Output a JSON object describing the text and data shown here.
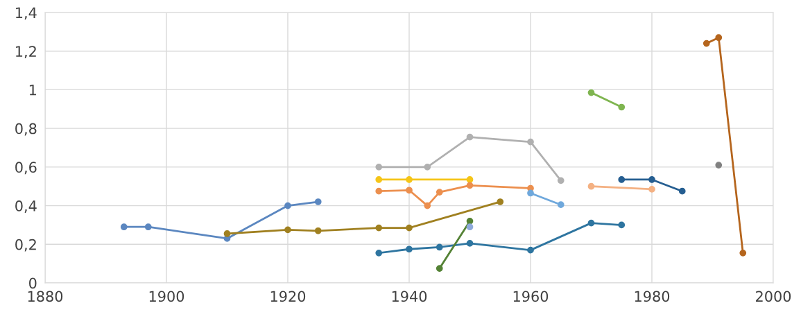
{
  "chart_data": {
    "type": "line",
    "marker": "circle",
    "line_style": "solid",
    "grid": true,
    "legend": false,
    "xlim": [
      1880,
      2000
    ],
    "xticks": [
      1880,
      1900,
      1920,
      1940,
      1960,
      1980,
      2000
    ],
    "ylim": [
      0,
      1.4
    ],
    "yticks": [
      {
        "value": 0,
        "label": "0"
      },
      {
        "value": 0.2,
        "label": "0,2"
      },
      {
        "value": 0.4,
        "label": "0,4"
      },
      {
        "value": 0.6,
        "label": "0,6"
      },
      {
        "value": 0.8,
        "label": "0,8"
      },
      {
        "value": 1,
        "label": "1"
      },
      {
        "value": 1.2,
        "label": "1,2"
      },
      {
        "value": 1.4,
        "label": "1,4"
      }
    ],
    "series": [
      {
        "color": "#5b87c0",
        "x": [
          1893,
          1897,
          1910,
          1920,
          1925
        ],
        "values": [
          0.29,
          0.29,
          0.23,
          0.4,
          0.42
        ]
      },
      {
        "color": "#a08020",
        "x": [
          1910,
          1920,
          1925,
          1935,
          1940,
          1955
        ],
        "values": [
          0.255,
          0.275,
          0.27,
          0.285,
          0.285,
          0.42
        ]
      },
      {
        "color": "#b0b0b0",
        "x": [
          1935,
          1943,
          1950,
          1960,
          1965
        ],
        "values": [
          0.6,
          0.6,
          0.755,
          0.73,
          0.53
        ]
      },
      {
        "color": "#f5c518",
        "x": [
          1935,
          1940,
          1950
        ],
        "values": [
          0.535,
          0.535,
          0.535
        ]
      },
      {
        "color": "#ec8f4e",
        "x": [
          1935,
          1940,
          1943,
          1945,
          1950,
          1960
        ],
        "values": [
          0.475,
          0.48,
          0.4,
          0.47,
          0.505,
          0.49
        ]
      },
      {
        "color": "#2e75a0",
        "x": [
          1935,
          1940,
          1945,
          1950,
          1960,
          1970,
          1975
        ],
        "values": [
          0.155,
          0.175,
          0.185,
          0.205,
          0.17,
          0.31,
          0.3
        ]
      },
      {
        "color": "#548235",
        "x": [
          1945,
          1950
        ],
        "values": [
          0.075,
          0.32
        ]
      },
      {
        "color": "#8eaadb",
        "x": [
          1950
        ],
        "values": [
          0.29
        ]
      },
      {
        "color": "#6fa8dc",
        "x": [
          1960,
          1965
        ],
        "values": [
          0.465,
          0.405
        ]
      },
      {
        "color": "#7fb550",
        "x": [
          1970,
          1975
        ],
        "values": [
          0.985,
          0.91
        ]
      },
      {
        "color": "#f4b183",
        "x": [
          1970,
          1980
        ],
        "values": [
          0.5,
          0.485
        ]
      },
      {
        "color": "#255e91",
        "x": [
          1975,
          1980,
          1985
        ],
        "values": [
          0.535,
          0.535,
          0.475
        ]
      },
      {
        "color": "#b5651d",
        "x": [
          1989,
          1991,
          1995
        ],
        "values": [
          1.24,
          1.27,
          0.155
        ]
      },
      {
        "color": "#808080",
        "x": [
          1991
        ],
        "values": [
          0.61
        ]
      }
    ]
  }
}
